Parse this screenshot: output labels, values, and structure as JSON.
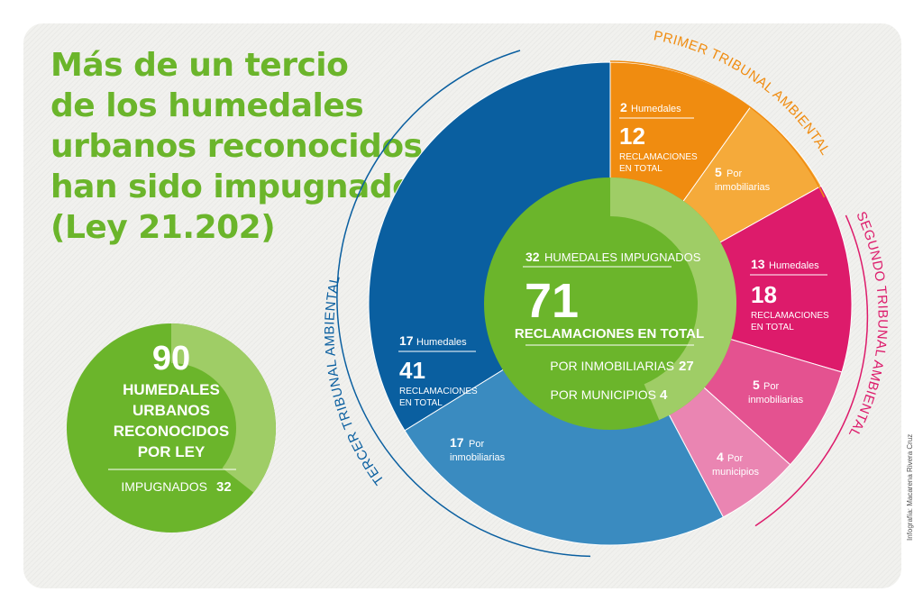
{
  "headline": {
    "lines": [
      "Más de un tercio",
      "de los humedales",
      "urbanos reconocidos",
      "han sido impugnados",
      "(Ley 21.202)"
    ]
  },
  "credit": "Infografía: Macarena Rivera Cruz",
  "colors": {
    "green": "#6bb52b",
    "green_light": "#9fcd66",
    "orange": "#f08c10",
    "orange_light": "#f5aa3a",
    "magenta": "#dd1b6b",
    "pink": "#e45290",
    "pink_light": "#ea85b2",
    "blue": "#0a5fa0",
    "blue_light": "#3a8bc0"
  },
  "left_badge": {
    "number": "90",
    "lines": [
      "HUMEDALES",
      "URBANOS",
      "RECONOCIDOS",
      "POR LEY"
    ],
    "impugnados_label": "IMPUGNADOS",
    "impugnados_value": "32",
    "fraction": 0.356
  },
  "center": {
    "top_value": "32",
    "top_label": "HUMEDALES IMPUGNADOS",
    "total_number": "71",
    "total_label": "RECLAMACIONES EN TOTAL",
    "inmob_label": "POR INMOBILIARIAS",
    "inmob_value": "27",
    "muni_label": "POR MUNICIPIOS",
    "muni_value": "4"
  },
  "arcs": {
    "primer": "PRIMER TRIBUNAL AMBIENTAL",
    "segundo": "SEGUNDO TRIBUNAL AMBIENTAL",
    "tercer": "TERCER TRIBUNAL AMBIENTAL"
  },
  "tribunals": {
    "primer": {
      "humedales_value": "2",
      "humedales_label": "Humedales",
      "reclamaciones_value": "12",
      "reclamaciones_label1": "RECLAMACIONES",
      "reclamaciones_label2": "EN TOTAL",
      "inmob_value": "5",
      "inmob_label1": "Por",
      "inmob_label2": "inmobiliarias"
    },
    "segundo": {
      "humedales_value": "13",
      "humedales_label": "Humedales",
      "reclamaciones_value": "18",
      "reclamaciones_label1": "RECLAMACIONES",
      "reclamaciones_label2": "EN TOTAL",
      "inmob_value": "5",
      "inmob_label1": "Por",
      "inmob_label2": "inmobiliarias",
      "muni_value": "4",
      "muni_label1": "Por",
      "muni_label2": "municipios"
    },
    "tercer": {
      "humedales_value": "17",
      "humedales_label": "Humedales",
      "reclamaciones_value": "41",
      "reclamaciones_label1": "RECLAMACIONES",
      "reclamaciones_label2": "EN TOTAL",
      "inmob_value": "17",
      "inmob_label1": "Por",
      "inmob_label2": "inmobiliarias"
    }
  },
  "chart_data": {
    "type": "pie",
    "total": 71,
    "slices": [
      {
        "name": "Primer Tribunal Ambiental - otras",
        "value": 7,
        "color": "orange"
      },
      {
        "name": "Primer Tribunal Ambiental - por inmobiliarias",
        "value": 5,
        "color": "orange_light"
      },
      {
        "name": "Segundo Tribunal Ambiental - otras",
        "value": 9,
        "color": "magenta"
      },
      {
        "name": "Segundo Tribunal Ambiental - por inmobiliarias",
        "value": 5,
        "color": "pink"
      },
      {
        "name": "Segundo Tribunal Ambiental - por municipios",
        "value": 4,
        "color": "pink_light"
      },
      {
        "name": "Tercer Tribunal Ambiental - por inmobiliarias",
        "value": 17,
        "color": "blue_light"
      },
      {
        "name": "Tercer Tribunal Ambiental - otras",
        "value": 24,
        "color": "blue"
      }
    ],
    "inner_ring": [
      {
        "name": "por inmobiliarias",
        "value": 27,
        "color": "green_light"
      },
      {
        "name": "por municipios",
        "value": 4,
        "color": "green_light"
      },
      {
        "name": "otras",
        "value": 40,
        "color": "green"
      }
    ]
  }
}
